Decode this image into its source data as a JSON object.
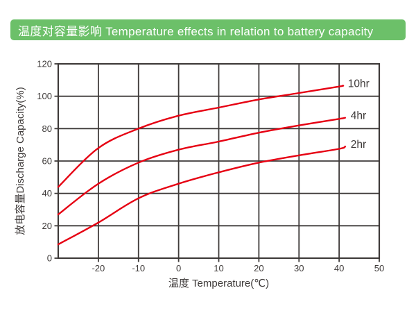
{
  "header": {
    "title": "温度对容量影响 Temperature effects in relation to battery capacity",
    "background_color": "#6cc069",
    "text_color": "#ffffff"
  },
  "chart_data": {
    "type": "line",
    "title": "温度对容量影响 Temperature effects in relation to battery capacity",
    "xlabel": "温度 Temperature(℃)",
    "ylabel": "放电容量Discharge Capacity(%)",
    "xlim": [
      -30,
      50
    ],
    "ylim": [
      0,
      120
    ],
    "x_ticks": [
      -20,
      -10,
      0,
      10,
      20,
      30,
      40,
      50
    ],
    "y_ticks": [
      0,
      20,
      40,
      60,
      80,
      100,
      120
    ],
    "grid": true,
    "legend_position": "right-of-curve-ends",
    "grid_color": "#3e3a39",
    "line_color": "#e60012",
    "label_color": "#3e3a39",
    "series": [
      {
        "name": "10hr",
        "x": [
          -30,
          -20,
          -10,
          0,
          10,
          20,
          30,
          40,
          40.8
        ],
        "values": [
          44,
          68,
          80,
          88,
          93,
          98,
          102,
          106,
          106.5
        ]
      },
      {
        "name": "4hr",
        "x": [
          -30,
          -20,
          -10,
          0,
          10,
          20,
          30,
          40,
          41.5
        ],
        "values": [
          27,
          46,
          59,
          67,
          72,
          77.5,
          82,
          86,
          86.7
        ]
      },
      {
        "name": "2hr",
        "x": [
          -30,
          -20,
          -10,
          0,
          10,
          20,
          30,
          40,
          41.5
        ],
        "values": [
          8.5,
          22,
          37,
          46,
          53,
          59,
          63.5,
          67.5,
          69
        ]
      }
    ]
  }
}
